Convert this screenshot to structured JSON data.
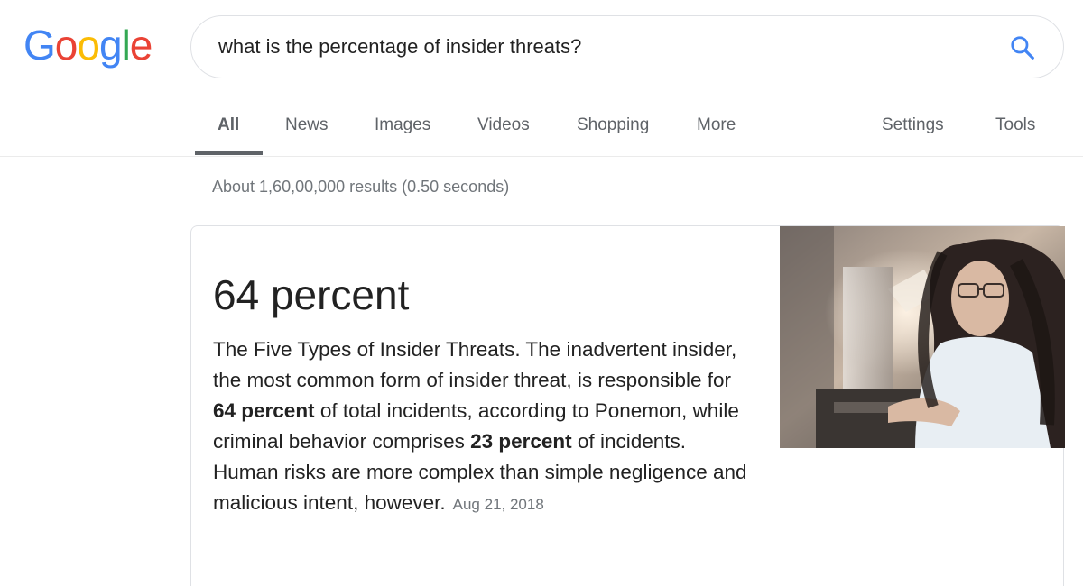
{
  "logo": {
    "letters": [
      {
        "char": "G",
        "color": "#4285f4"
      },
      {
        "char": "o",
        "color": "#ea4335"
      },
      {
        "char": "o",
        "color": "#fbbc05"
      },
      {
        "char": "g",
        "color": "#4285f4"
      },
      {
        "char": "l",
        "color": "#34a853"
      },
      {
        "char": "e",
        "color": "#ea4335"
      }
    ]
  },
  "search": {
    "query": "what is the percentage of insider threats?",
    "icon": "search-icon"
  },
  "tabs": {
    "all": "All",
    "news": "News",
    "images": "Images",
    "videos": "Videos",
    "shopping": "Shopping",
    "more": "More",
    "settings": "Settings",
    "tools": "Tools",
    "active": "All"
  },
  "results": {
    "stats": "About 1,60,00,000 results (0.50 seconds)"
  },
  "snippet": {
    "answer": "64 percent",
    "text_1": "The Five Types of Insider Threats. The inadvertent insider, the most common form of insider threat, is responsible for ",
    "bold_1": "64 percent",
    "text_2": " of total incidents, according to Ponemon, while criminal behavior comprises ",
    "bold_2": "23 percent",
    "text_3": " of incidents. Human risks are more complex than simple negligence and malicious intent, however.",
    "date": "Aug 21, 2018",
    "image": "woman-at-computer-photo"
  },
  "colors": {
    "text": "#222222",
    "muted": "#70757a",
    "tab": "#5f6368",
    "border": "#dfe1e5"
  }
}
